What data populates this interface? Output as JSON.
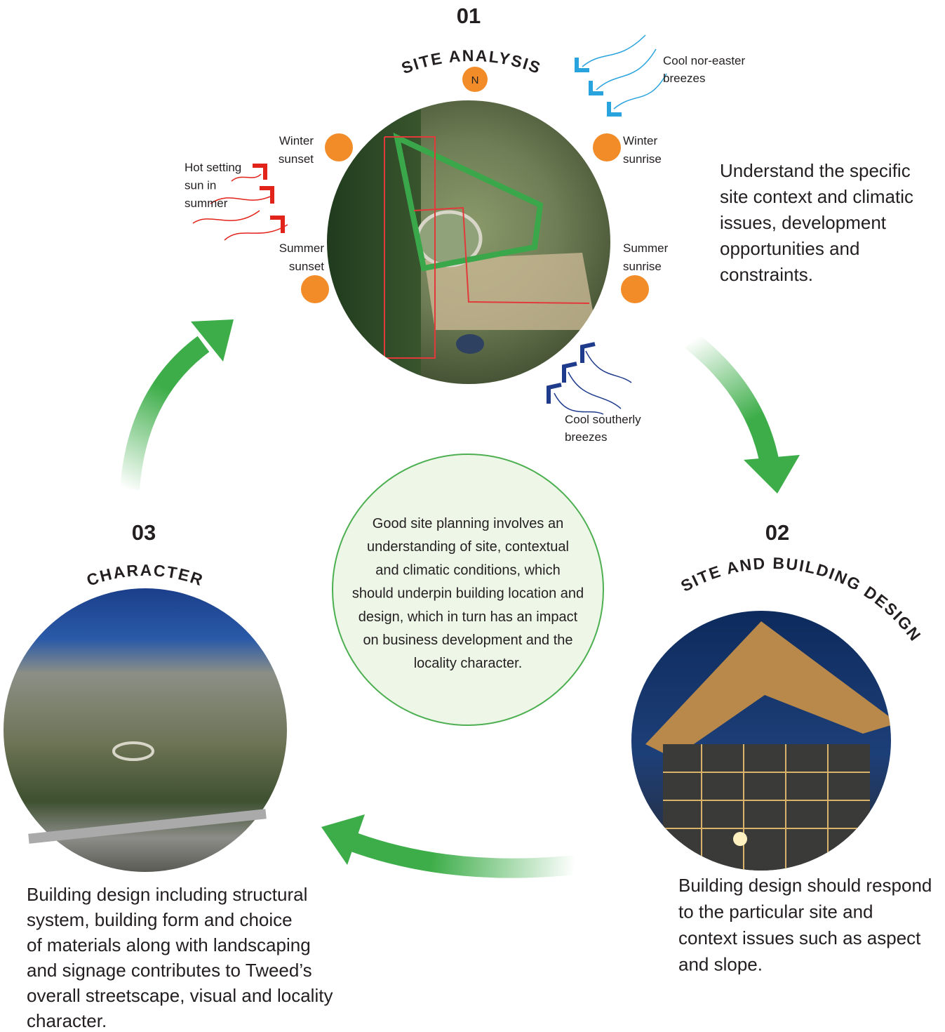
{
  "steps": [
    {
      "number": "01",
      "title": "SITE ANALYSIS",
      "description": [
        "Understand the specific",
        "site context and climatic",
        "issues, development",
        "opportunities and",
        "constraints."
      ]
    },
    {
      "number": "02",
      "title": "SITE AND BUILDING DESIGN",
      "description": [
        "Building design should respond",
        "to the particular site and",
        "context issues such as aspect",
        "and slope."
      ]
    },
    {
      "number": "03",
      "title": "CHARACTER",
      "description": [
        "Building design including structural",
        "system, building form and choice",
        "of materials along with landscaping",
        "and signage contributes to Tweed’s",
        "overall streetscape, visual and locality",
        "character."
      ]
    }
  ],
  "site_labels": {
    "north": "N",
    "winter_sunset": [
      "Winter",
      "sunset"
    ],
    "winter_sunrise": [
      "Winter",
      "sunrise"
    ],
    "summer_sunset": [
      "Summer",
      "sunset"
    ],
    "summer_sunrise": [
      "Summer",
      "sunrise"
    ],
    "hot_sun": [
      "Hot setting",
      "sun in",
      "summer"
    ],
    "north_east_breeze": [
      "Cool nor-easter",
      "breezes"
    ],
    "southerly_breeze": [
      "Cool southerly",
      "breezes"
    ]
  },
  "center_text": [
    "Good site planning involves an",
    "understanding of site, contextual",
    "and climatic conditions, which",
    "should underpin building location and",
    "design, which in turn has an impact",
    "on business development and the",
    "locality character."
  ]
}
